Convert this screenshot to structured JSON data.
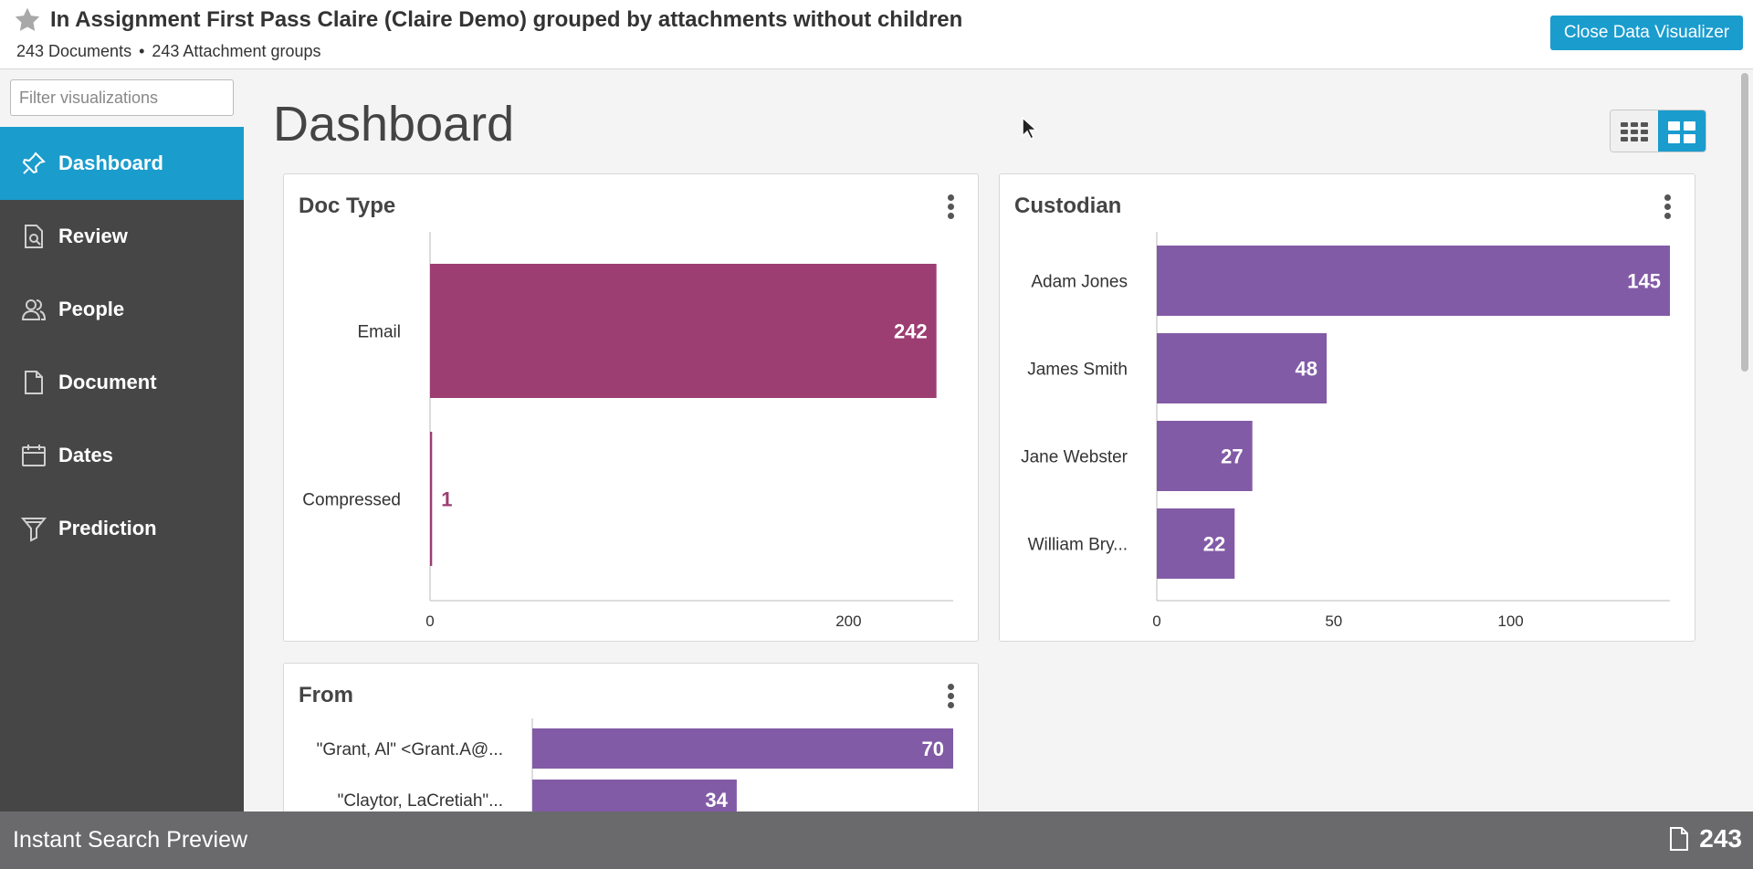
{
  "header": {
    "title": "In Assignment First Pass Claire (Claire Demo) grouped by attachments without children",
    "documents": "243 Documents",
    "separator": "•",
    "attachment_groups": "243 Attachment groups",
    "close_button": "Close Data Visualizer",
    "star_icon": "star-icon"
  },
  "sidebar": {
    "filter_placeholder": "Filter visualizations",
    "items": [
      {
        "label": "Dashboard",
        "icon": "pin-icon",
        "active": true
      },
      {
        "label": "Review",
        "icon": "document-search-icon",
        "active": false
      },
      {
        "label": "People",
        "icon": "people-icon",
        "active": false
      },
      {
        "label": "Document",
        "icon": "document-icon",
        "active": false
      },
      {
        "label": "Dates",
        "icon": "calendar-icon",
        "active": false
      },
      {
        "label": "Prediction",
        "icon": "funnel-icon",
        "active": false
      }
    ]
  },
  "main": {
    "page_title": "Dashboard",
    "view_toggle": [
      "grid-small-icon",
      "grid-large-icon"
    ],
    "active_view": "grid-large-icon"
  },
  "colors": {
    "accent": "#1a9ccd",
    "doc_type_bar": "#9c3e72",
    "custodian_bar": "#825ba6",
    "sidebar_bg": "#464646",
    "footer_bg": "#6a6a6d"
  },
  "chart_data": [
    {
      "type": "bar",
      "orientation": "horizontal",
      "title": "Doc Type",
      "categories": [
        "Email",
        "Compressed"
      ],
      "values": [
        242,
        1
      ],
      "xlim": [
        0,
        250
      ],
      "xticks": [
        0,
        200
      ],
      "color": "#9c3e72"
    },
    {
      "type": "bar",
      "orientation": "horizontal",
      "title": "Custodian",
      "categories": [
        "Adam Jones",
        "James Smith",
        "Jane Webster",
        "William Bry..."
      ],
      "values": [
        145,
        48,
        27,
        22
      ],
      "xlim": [
        0,
        145
      ],
      "xticks": [
        0,
        50,
        100
      ],
      "color": "#825ba6"
    },
    {
      "type": "bar",
      "orientation": "horizontal",
      "title": "From",
      "categories": [
        "\"Grant, Al\" <Grant.A@...",
        "\"Claytor, LaCretiah\"..."
      ],
      "values": [
        70,
        34
      ],
      "xlim": [
        0,
        70
      ],
      "color": "#825ba6"
    }
  ],
  "footer": {
    "label": "Instant Search Preview",
    "count": "243",
    "icon": "document-icon"
  }
}
